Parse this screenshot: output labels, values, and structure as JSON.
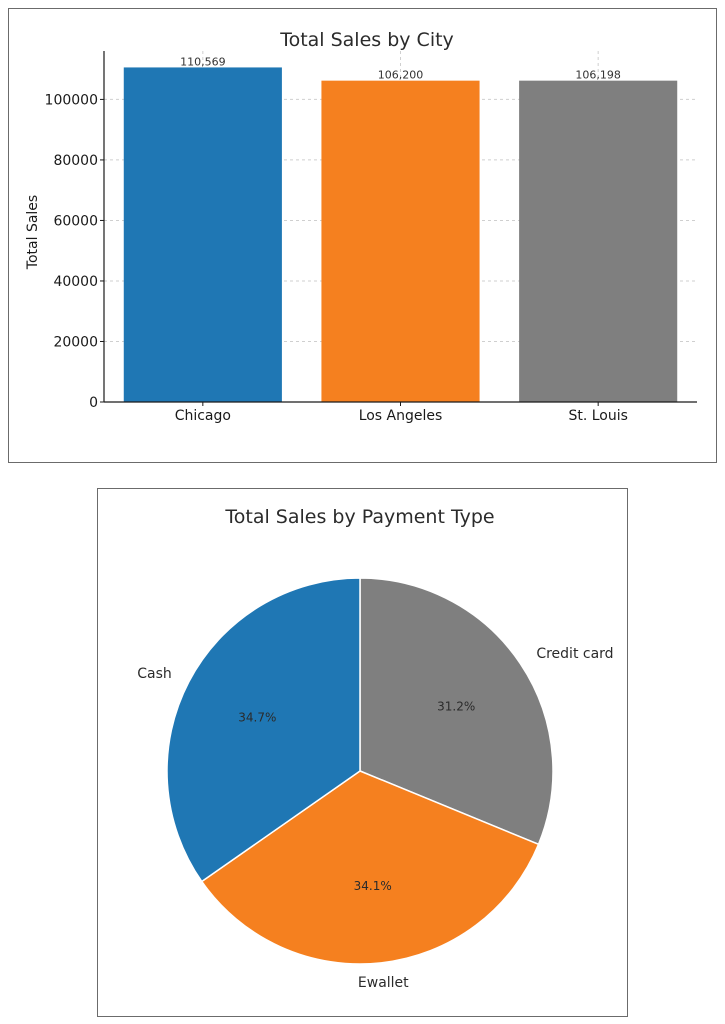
{
  "chart_data": [
    {
      "type": "bar",
      "title": "Total Sales by City",
      "ylabel": "Total Sales",
      "xlabel": "",
      "categories": [
        "Chicago",
        "Los Angeles",
        "St. Louis"
      ],
      "values": [
        110569,
        106200,
        106198
      ],
      "data_labels": [
        "110,569",
        "106,200",
        "106,198"
      ],
      "ylim": [
        0,
        116000
      ],
      "yticks": [
        0,
        20000,
        40000,
        60000,
        80000,
        100000
      ],
      "ytick_labels": [
        "0",
        "20000",
        "40000",
        "60000",
        "80000",
        "100000"
      ],
      "colors": [
        "#1f77b4",
        "#f5801f",
        "#7f7f7f"
      ],
      "grid": true
    },
    {
      "type": "pie",
      "title": "Total Sales by Payment Type",
      "labels": [
        "Credit card",
        "Ewallet",
        "Cash"
      ],
      "values": [
        31.2,
        34.1,
        34.7
      ],
      "pct_labels": [
        "31.2%",
        "34.1%",
        "34.7%"
      ],
      "colors": [
        "#7f7f7f",
        "#f5801f",
        "#1f77b4"
      ]
    }
  ]
}
